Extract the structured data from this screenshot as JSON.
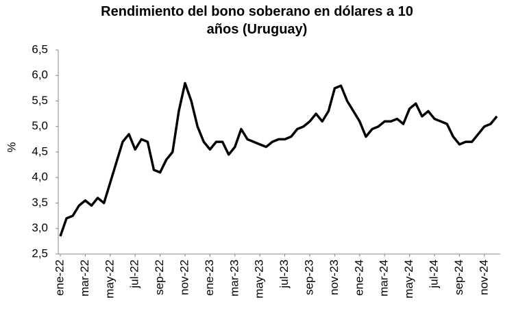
{
  "chart_data": {
    "type": "line",
    "title": "Rendimiento del bono soberano en dólares a 10 años (Uruguay)",
    "y_label": "%",
    "categories": [
      "ene-22",
      null,
      null,
      null,
      "mar-22",
      null,
      null,
      null,
      "may-22",
      null,
      null,
      null,
      "jul-22",
      null,
      null,
      null,
      "sep-22",
      null,
      null,
      null,
      "nov-22",
      null,
      null,
      null,
      "ene-23",
      null,
      null,
      null,
      "mar-23",
      null,
      null,
      null,
      "may-23",
      null,
      null,
      null,
      "jul-23",
      null,
      null,
      null,
      "sep-23",
      null,
      null,
      null,
      "nov-23",
      null,
      null,
      null,
      "ene-24",
      null,
      null,
      null,
      "mar-24",
      null,
      null,
      null,
      "may-24",
      null,
      null,
      null,
      "jul-24",
      null,
      null,
      null,
      "sep-24",
      null,
      null,
      null,
      "nov-24",
      null,
      null
    ],
    "series": [
      {
        "color": "#000000",
        "values": [
          2.85,
          3.2,
          3.25,
          3.45,
          3.55,
          3.45,
          3.6,
          3.5,
          3.9,
          4.3,
          4.7,
          4.85,
          4.55,
          4.75,
          4.7,
          4.15,
          4.1,
          4.35,
          4.5,
          5.3,
          5.85,
          5.5,
          5.0,
          4.7,
          4.55,
          4.7,
          4.7,
          4.45,
          4.6,
          4.95,
          4.75,
          4.7,
          4.65,
          4.6,
          4.7,
          4.75,
          4.75,
          4.8,
          4.95,
          5.0,
          5.1,
          5.25,
          5.1,
          5.3,
          5.75,
          5.8,
          5.5,
          5.3,
          5.1,
          4.8,
          4.95,
          5.0,
          5.1,
          5.1,
          5.15,
          5.05,
          5.35,
          5.45,
          5.2,
          5.3,
          5.15,
          5.1,
          5.05,
          4.8,
          4.65,
          4.7,
          4.7,
          4.85,
          5.0,
          5.05,
          5.2
        ]
      }
    ],
    "ylim": [
      2.5,
      6.5
    ],
    "yticks": [
      {
        "value": 2.5,
        "label": "2,5"
      },
      {
        "value": 3.0,
        "label": "3,0"
      },
      {
        "value": 3.5,
        "label": "3,5"
      },
      {
        "value": 4.0,
        "label": "4,0"
      },
      {
        "value": 4.5,
        "label": "4,5"
      },
      {
        "value": 5.0,
        "label": "5,0"
      },
      {
        "value": 5.5,
        "label": "5,5"
      },
      {
        "value": 6.0,
        "label": "6,0"
      },
      {
        "value": 6.5,
        "label": "6,5"
      }
    ],
    "grid": false
  }
}
